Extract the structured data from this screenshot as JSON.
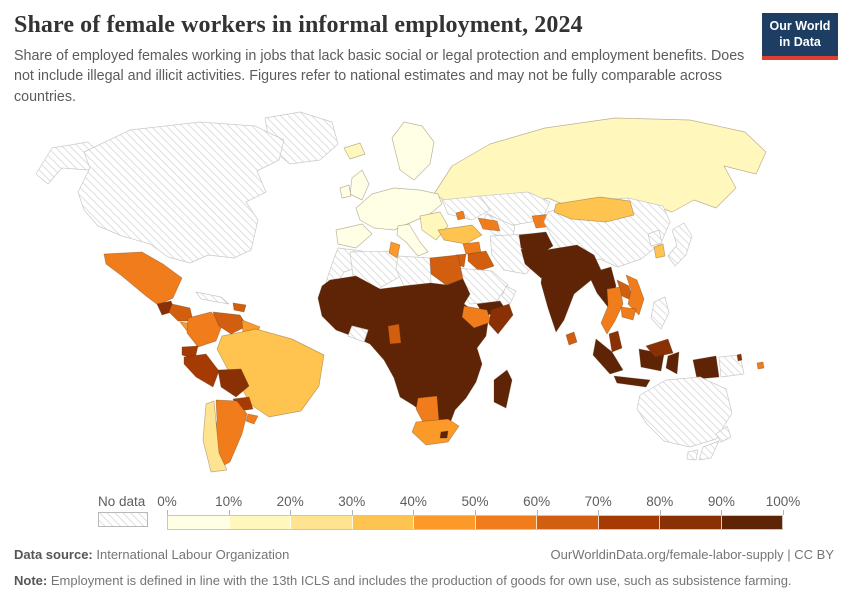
{
  "header": {
    "title": "Share of female workers in informal employment, 2024",
    "subtitle": "Share of employed females working in jobs that lack basic social or legal protection and employment benefits. Does not include illegal and illicit activities. Figures refer to national estimates and may not be fully comparable across countries.",
    "logo": {
      "line1": "Our World",
      "line2": "in Data",
      "bg_color": "#1d3d63",
      "accent_color": "#dc3e32"
    }
  },
  "legend": {
    "no_data_label": "No data",
    "tick_labels": [
      "0%",
      "10%",
      "20%",
      "30%",
      "40%",
      "50%",
      "60%",
      "70%",
      "80%",
      "90%",
      "100%"
    ],
    "bin_ranges": [
      "0-10%",
      "10-20%",
      "20-30%",
      "30-40%",
      "40-50%",
      "50-60%",
      "60-70%",
      "70-80%",
      "80-90%",
      "90-100%"
    ],
    "bin_colors": [
      "#FFFFE5",
      "#FFF7BC",
      "#FEE391",
      "#FEC44F",
      "#FB9A29",
      "#F07C1C",
      "#D25E0F",
      "#A63A03",
      "#8A3005",
      "#5F2306"
    ]
  },
  "map": {
    "type": "choropleth",
    "unit": "share of employed females in informal employment",
    "no_data_pattern": "diagonal-hatch",
    "regions": {
      "greenland": {
        "bin": "no-data"
      },
      "canada-usa": {
        "bin": "no-data"
      },
      "alaska": {
        "bin": "no-data"
      },
      "iceland": {
        "bin": 2
      },
      "mexico": {
        "bin": 6
      },
      "guatemala": {
        "bin": 9
      },
      "honduras-nicaragua": {
        "bin": 7
      },
      "costa-rica-panama": {
        "bin": 5
      },
      "cuba": {
        "bin": "no-data"
      },
      "hispaniola": {
        "bin": 7
      },
      "colombia": {
        "bin": 6
      },
      "venezuela": {
        "bin": 7
      },
      "guyanas": {
        "bin": 5
      },
      "ecuador": {
        "bin": 8
      },
      "peru": {
        "bin": 8
      },
      "brazil": {
        "bin": 4
      },
      "bolivia": {
        "bin": 9
      },
      "paraguay": {
        "bin": 8
      },
      "uruguay": {
        "bin": 6
      },
      "chile": {
        "bin": 3
      },
      "argentina": {
        "bin": 6
      },
      "scandinavia": {
        "bin": 1
      },
      "uk": {
        "bin": 1
      },
      "ireland": {
        "bin": 1
      },
      "west-europe": {
        "bin": 1
      },
      "iberia": {
        "bin": 1
      },
      "italy": {
        "bin": 1
      },
      "balkans": {
        "bin": 2
      },
      "ukraine": {
        "bin": "no-data"
      },
      "moldova": {
        "bin": 6
      },
      "russia": {
        "bin": 2
      },
      "kazakhstan": {
        "bin": "no-data"
      },
      "central-asia": {
        "bin": "no-data"
      },
      "kyrgyzstan-tajikistan": {
        "bin": 6
      },
      "turkey": {
        "bin": 4
      },
      "caucasus": {
        "bin": 6
      },
      "syria": {
        "bin": 6
      },
      "jordan": {
        "bin": 7
      },
      "iraq": {
        "bin": 7
      },
      "iran": {
        "bin": "no-data"
      },
      "saudi-arabia": {
        "bin": "no-data"
      },
      "yemen": {
        "bin": 10
      },
      "oman": {
        "bin": "no-data"
      },
      "egypt": {
        "bin": 7
      },
      "libya": {
        "bin": "no-data"
      },
      "algeria": {
        "bin": "no-data"
      },
      "tunisia": {
        "bin": 5
      },
      "morocco": {
        "bin": "no-data"
      },
      "sub-saharan-africa": {
        "bin": 10
      },
      "ghana": {
        "bin": 7
      },
      "liberia-sierra-leone": {
        "bin": "no-data"
      },
      "ethiopia": {
        "bin": 6
      },
      "somalia": {
        "bin": 9
      },
      "namibia": {
        "bin": 6
      },
      "south-africa": {
        "bin": 5
      },
      "lesotho": {
        "bin": 10
      },
      "madagascar": {
        "bin": 10
      },
      "afghanistan": {
        "bin": 10
      },
      "pakistan": {
        "bin": 10
      },
      "india": {
        "bin": 10
      },
      "sri-lanka": {
        "bin": 7
      },
      "china": {
        "bin": "no-data"
      },
      "mongolia": {
        "bin": 4
      },
      "north-korea": {
        "bin": "no-data"
      },
      "south-korea": {
        "bin": 4
      },
      "japan": {
        "bin": "no-data"
      },
      "myanmar": {
        "bin": 10
      },
      "thailand": {
        "bin": 6
      },
      "laos": {
        "bin": 7
      },
      "vietnam": {
        "bin": 6
      },
      "cambodia": {
        "bin": 6
      },
      "malaysia": {
        "bin": 9
      },
      "indonesia": {
        "bin": 10
      },
      "papua-new-guinea": {
        "bin": "no-data"
      },
      "philippines": {
        "bin": "no-data"
      },
      "australia": {
        "bin": "no-data"
      },
      "new-zealand": {
        "bin": "no-data"
      },
      "fiji": {
        "bin": 6
      },
      "vanuatu": {
        "bin": 9
      }
    }
  },
  "footer": {
    "source_label": "Data source:",
    "source_text": "International Labour Organization",
    "url_text": "OurWorldinData.org/female-labor-supply | CC BY",
    "note_label": "Note:",
    "note_text": "Employment is defined in line with the 13th ICLS and includes the production of goods for own use, such as subsistence farming."
  }
}
